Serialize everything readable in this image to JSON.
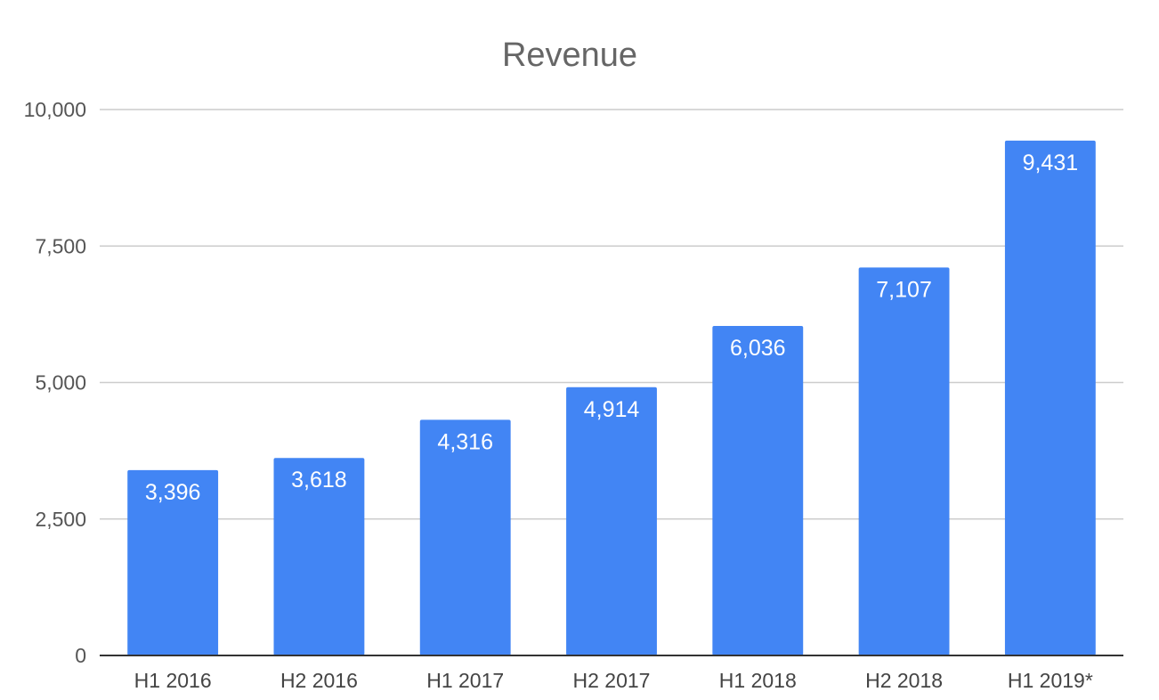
{
  "chart_data": {
    "type": "bar",
    "title": "Revenue",
    "xlabel": "",
    "ylabel": "",
    "categories": [
      "H1 2016",
      "H2 2016",
      "H1 2017",
      "H2 2017",
      "H1 2018",
      "H2 2018",
      "H1 2019*"
    ],
    "values": [
      3396,
      3618,
      4316,
      4914,
      6036,
      7107,
      9431
    ],
    "value_labels": [
      "3,396",
      "3,618",
      "4,316",
      "4,914",
      "6,036",
      "7,107",
      "9,431"
    ],
    "ylim": [
      0,
      10000
    ],
    "yticks": [
      0,
      2500,
      5000,
      7500,
      10000
    ],
    "ytick_labels": [
      "0",
      "2,500",
      "5,000",
      "7,500",
      "10,000"
    ],
    "grid": true,
    "legend": "none",
    "bar_color": "#4285f4",
    "gridline_color": "#cccccc",
    "axis_color": "#333333"
  }
}
